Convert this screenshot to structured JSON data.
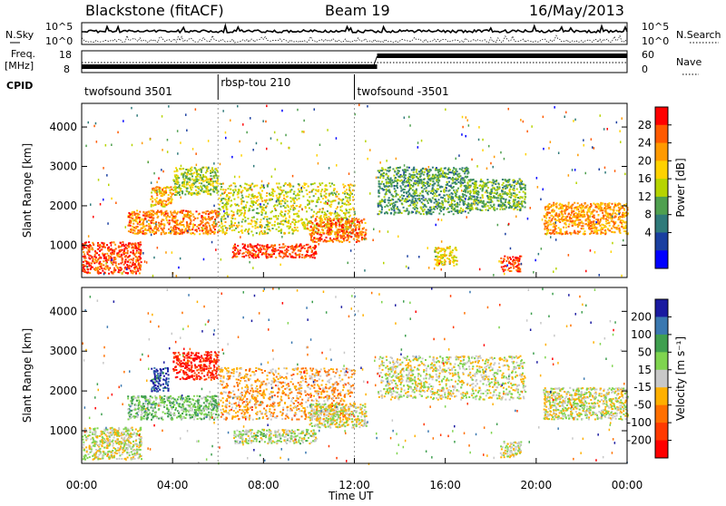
{
  "header": {
    "station": "Blackstone (fitACF)",
    "beam": "Beam 19",
    "date": "16/May/2013"
  },
  "top_panels": {
    "nsky_label": "N.Sky",
    "nsky_ticks": [
      "10^5",
      "10^0"
    ],
    "nsearch_label": "N.Search",
    "nsearch_ticks": [
      "10^5",
      "10^0"
    ],
    "freq_label": "Freq.",
    "freq_unit": "[MHz]",
    "freq_ticks": [
      "18",
      "8"
    ],
    "nave_label": "Nave",
    "nave_ticks": [
      "60",
      "0"
    ],
    "cpid_label": "CPID",
    "cpid_segments": [
      {
        "name": "twofsound 3501",
        "start_hour": 0,
        "end_hour": 6
      },
      {
        "name": "rbsp-tou 210",
        "start_hour": 6,
        "end_hour": 12
      },
      {
        "name": "twofsound -3501",
        "start_hour": 12,
        "end_hour": 24
      }
    ]
  },
  "chart_data": [
    {
      "type": "heatmap",
      "title": "",
      "xlabel": "Time UT",
      "ylabel": "Slant Range [km]",
      "x_ticks": [
        "00:00",
        "04:00",
        "08:00",
        "12:00",
        "16:00",
        "20:00",
        "00:00"
      ],
      "xlim_hours": [
        0,
        24
      ],
      "y_ticks": [
        1000,
        2000,
        3000,
        4000
      ],
      "ylim": [
        180,
        4600
      ],
      "colorbar": {
        "label": "Power [dB]",
        "ticks": [
          "28",
          "24",
          "20",
          "16",
          "12",
          "8",
          "4"
        ],
        "colors": [
          "#ff0000",
          "#ff5a00",
          "#ff9a00",
          "#ffd200",
          "#b6d400",
          "#4fa04f",
          "#2f7a7a",
          "#1a3fa0",
          "#0000ff"
        ]
      },
      "regions": [
        {
          "t0": 0.0,
          "t1": 2.6,
          "r0": 300,
          "r1": 1100,
          "level": 0.9
        },
        {
          "t0": 2.0,
          "t1": 6.0,
          "r0": 1300,
          "r1": 1900,
          "level": 0.8
        },
        {
          "t0": 4.0,
          "t1": 6.0,
          "r0": 2300,
          "r1": 3000,
          "level": 0.5
        },
        {
          "t0": 3.0,
          "t1": 4.0,
          "r0": 2000,
          "r1": 2500,
          "level": 0.7
        },
        {
          "t0": 6.0,
          "t1": 12.0,
          "r0": 1300,
          "r1": 2600,
          "level": 0.55
        },
        {
          "t0": 6.6,
          "t1": 10.3,
          "r0": 700,
          "r1": 1050,
          "level": 0.95
        },
        {
          "t0": 10.0,
          "t1": 12.5,
          "r0": 1100,
          "r1": 1700,
          "level": 0.85
        },
        {
          "t0": 13.0,
          "t1": 17.0,
          "r0": 1800,
          "r1": 3000,
          "level": 0.35
        },
        {
          "t0": 17.0,
          "t1": 19.5,
          "r0": 1900,
          "r1": 2700,
          "level": 0.4
        },
        {
          "t0": 18.4,
          "t1": 19.3,
          "r0": 350,
          "r1": 750,
          "level": 0.95
        },
        {
          "t0": 20.3,
          "t1": 24.0,
          "r0": 1300,
          "r1": 2100,
          "level": 0.75
        },
        {
          "t0": 15.5,
          "t1": 16.5,
          "r0": 500,
          "r1": 1000,
          "level": 0.6
        }
      ]
    },
    {
      "type": "heatmap",
      "title": "",
      "xlabel": "Time UT",
      "ylabel": "Slant Range [km]",
      "x_ticks": [
        "00:00",
        "04:00",
        "08:00",
        "12:00",
        "16:00",
        "20:00",
        "00:00"
      ],
      "xlim_hours": [
        0,
        24
      ],
      "y_ticks": [
        1000,
        2000,
        3000,
        4000
      ],
      "ylim": [
        180,
        4600
      ],
      "colorbar": {
        "label": "Velocity [m s⁻¹]",
        "ticks": [
          "200",
          "100",
          "50",
          "15",
          "-15",
          "-50",
          "-100",
          "-200"
        ],
        "colors": [
          "#1a1aa0",
          "#3a78b0",
          "#3f9f4f",
          "#7fd44f",
          "#c8c8c8",
          "#ffb000",
          "#ff7000",
          "#ff3a00",
          "#ff0000"
        ]
      },
      "regions": [
        {
          "t0": 0.0,
          "t1": 2.6,
          "r0": 300,
          "r1": 1100,
          "level": 0.5
        },
        {
          "t0": 2.0,
          "t1": 6.0,
          "r0": 1300,
          "r1": 1900,
          "level": 0.65
        },
        {
          "t0": 4.0,
          "t1": 6.0,
          "r0": 2300,
          "r1": 3000,
          "level": 0.05
        },
        {
          "t0": 3.0,
          "t1": 3.8,
          "r0": 2000,
          "r1": 2600,
          "level": 0.95
        },
        {
          "t0": 6.0,
          "t1": 12.0,
          "r0": 1300,
          "r1": 2600,
          "level": 0.35
        },
        {
          "t0": 6.6,
          "t1": 10.3,
          "r0": 700,
          "r1": 1050,
          "level": 0.55
        },
        {
          "t0": 10.0,
          "t1": 12.5,
          "r0": 1100,
          "r1": 1700,
          "level": 0.5
        },
        {
          "t0": 13.0,
          "t1": 19.5,
          "r0": 1800,
          "r1": 2900,
          "level": 0.5
        },
        {
          "t0": 18.4,
          "t1": 19.3,
          "r0": 350,
          "r1": 750,
          "level": 0.5
        },
        {
          "t0": 20.3,
          "t1": 24.0,
          "r0": 1300,
          "r1": 2100,
          "level": 0.5
        }
      ]
    }
  ]
}
